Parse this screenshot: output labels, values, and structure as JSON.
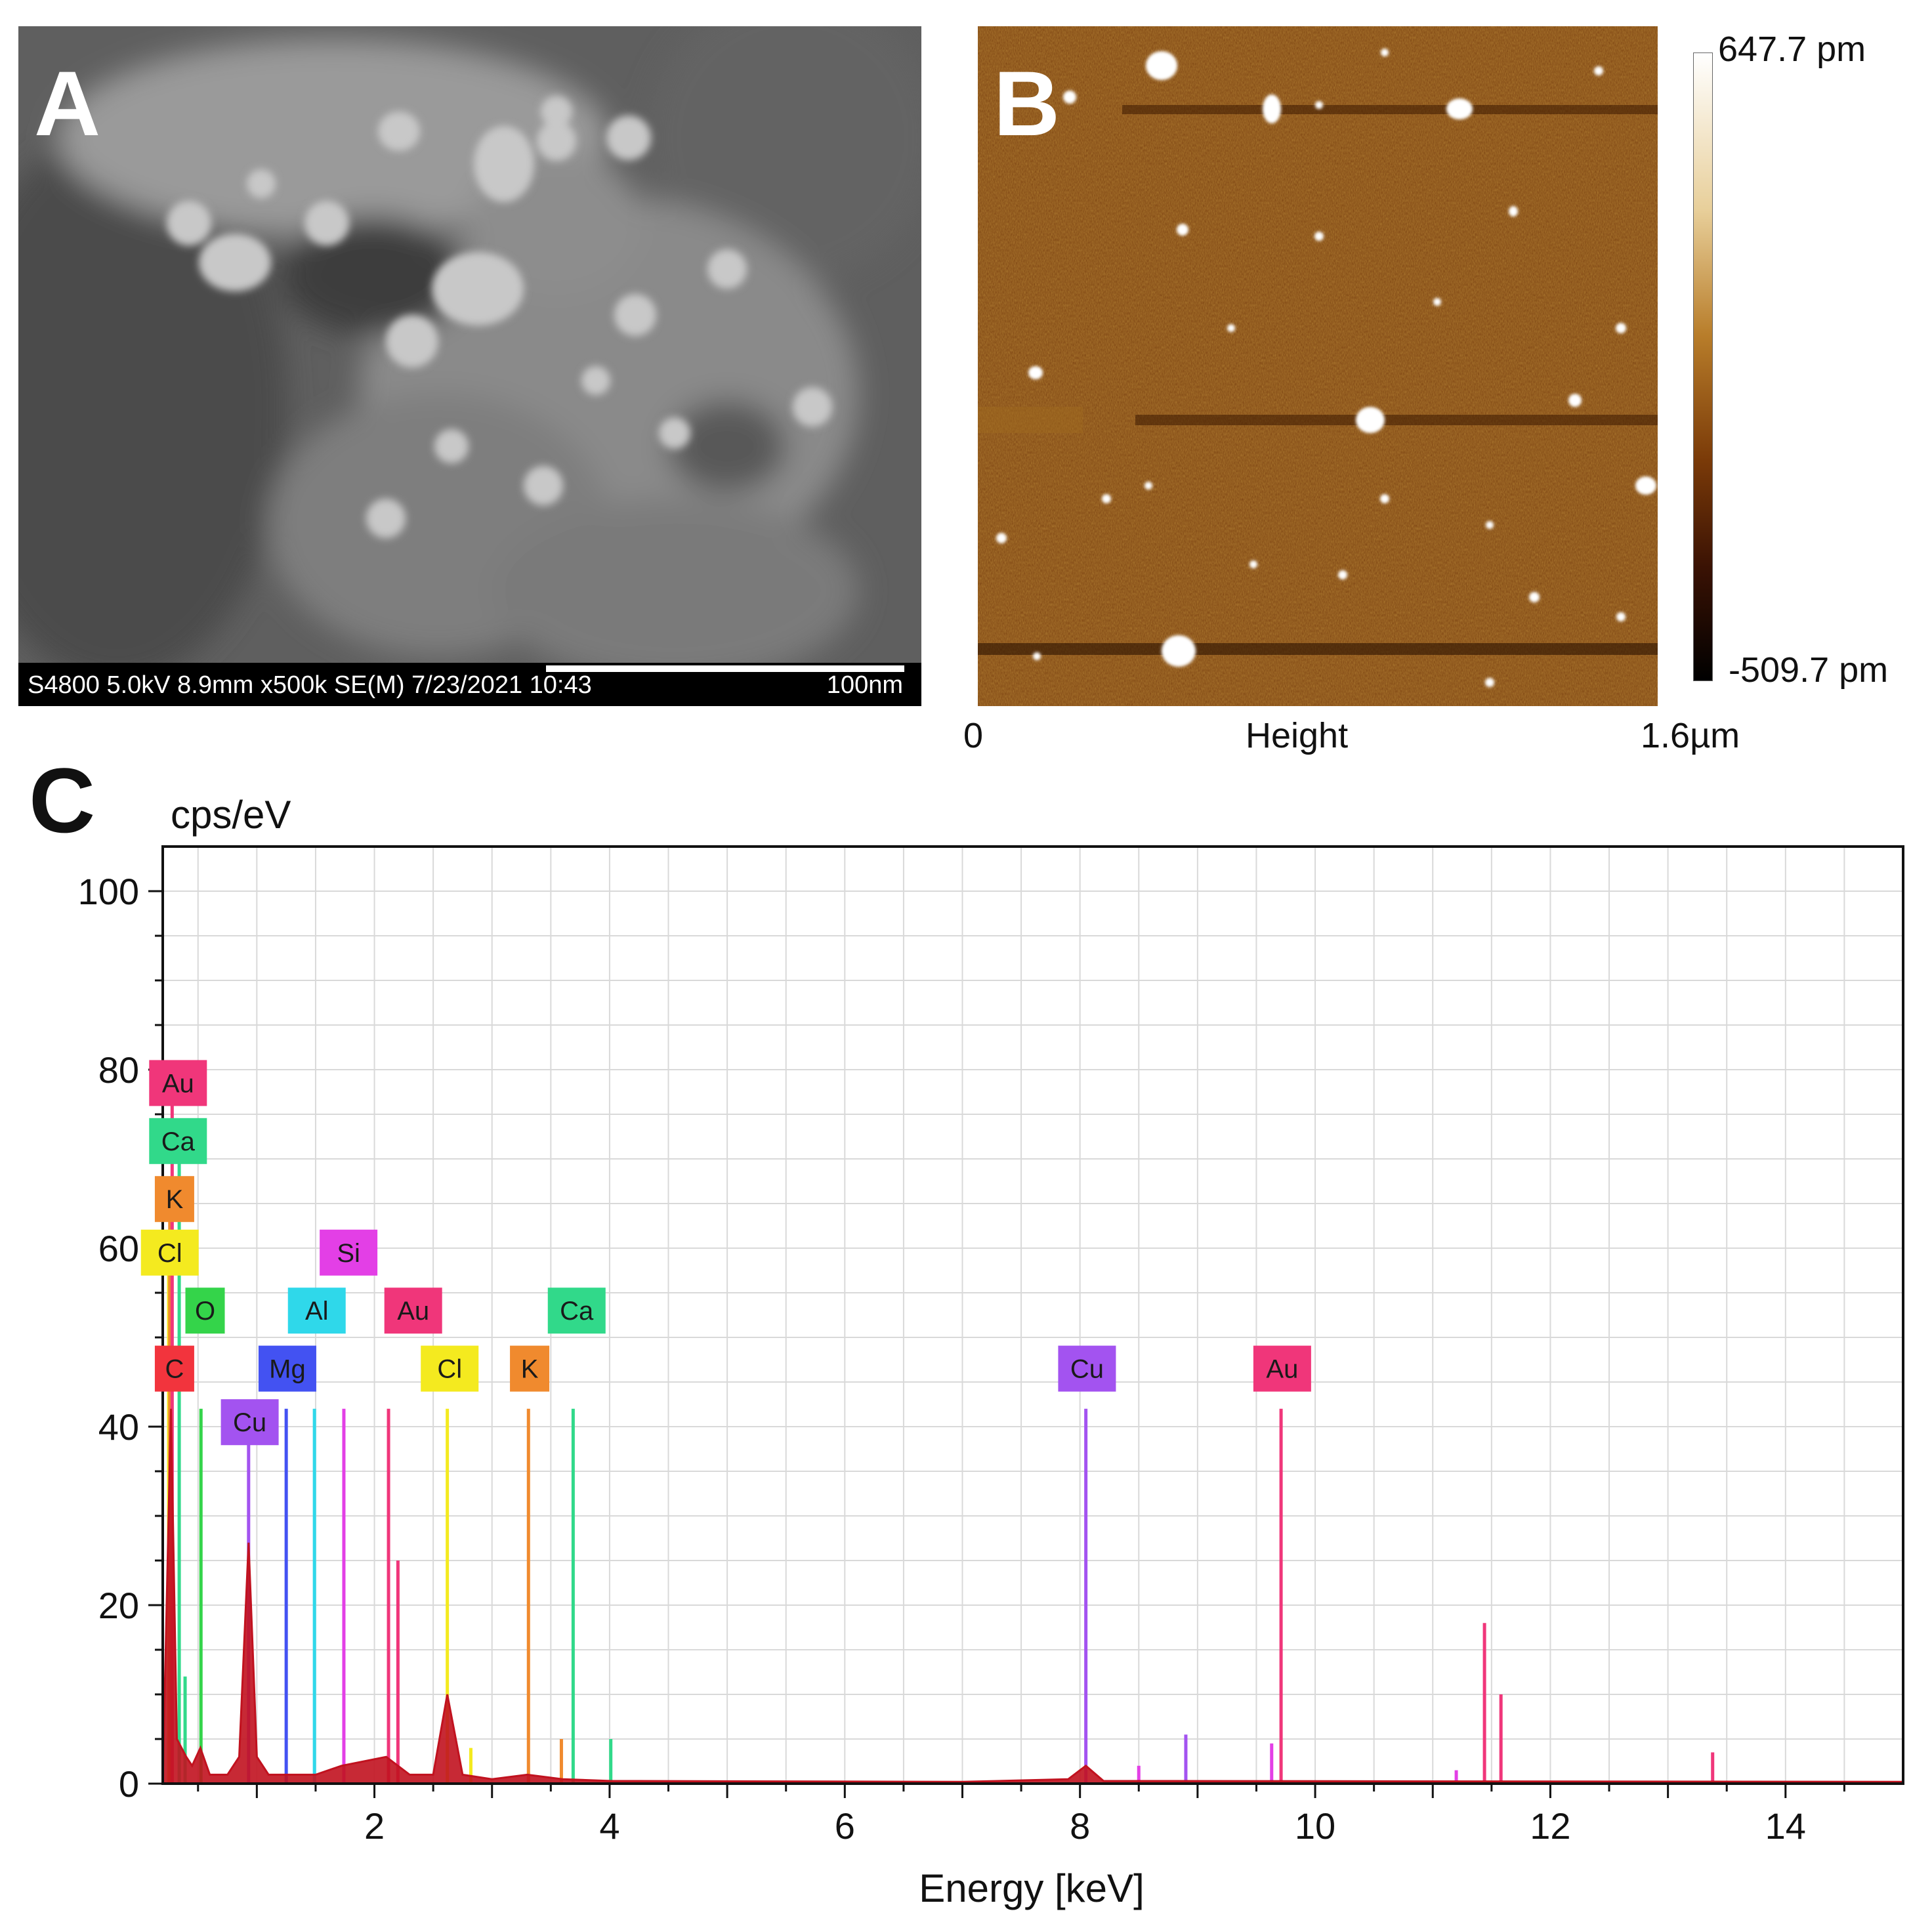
{
  "figure": {
    "panel_a": {
      "label": "A",
      "info_bar": "S4800 5.0kV 8.9mm x500k SE(M) 7/23/2021 10:43",
      "scale_text": "100nm"
    },
    "panel_b": {
      "label": "B",
      "colorbar_max": "647.7 pm",
      "colorbar_min": "-509.7 pm",
      "x_start": "0",
      "x_title": "Height",
      "x_end": "1.6µm",
      "colors": {
        "low": "#000000",
        "mid": "#7a3a08",
        "high": "#ffffff",
        "background": "#7a4010"
      }
    },
    "panel_c": {
      "label": "C"
    }
  },
  "chart_data": {
    "type": "line",
    "ylabel": "cps/eV",
    "xlabel": "Energy [keV]",
    "xlim": [
      0.2,
      15
    ],
    "ylim": [
      0,
      105
    ],
    "xticks": [
      2,
      4,
      6,
      8,
      10,
      12,
      14
    ],
    "yticks": [
      0,
      20,
      40,
      60,
      80,
      100
    ],
    "grid": true,
    "spectrum_color": "#c1121f",
    "spectrum": [
      {
        "x": 0.2,
        "y": 0
      },
      {
        "x": 0.27,
        "y": 42
      },
      {
        "x": 0.32,
        "y": 5
      },
      {
        "x": 0.4,
        "y": 3
      },
      {
        "x": 0.45,
        "y": 2
      },
      {
        "x": 0.52,
        "y": 4
      },
      {
        "x": 0.6,
        "y": 1
      },
      {
        "x": 0.75,
        "y": 1
      },
      {
        "x": 0.85,
        "y": 3
      },
      {
        "x": 0.93,
        "y": 27
      },
      {
        "x": 1.0,
        "y": 3
      },
      {
        "x": 1.1,
        "y": 1
      },
      {
        "x": 1.3,
        "y": 1
      },
      {
        "x": 1.5,
        "y": 1
      },
      {
        "x": 1.72,
        "y": 2
      },
      {
        "x": 2.1,
        "y": 3
      },
      {
        "x": 2.3,
        "y": 1
      },
      {
        "x": 2.5,
        "y": 1
      },
      {
        "x": 2.62,
        "y": 10
      },
      {
        "x": 2.75,
        "y": 1
      },
      {
        "x": 3.0,
        "y": 0.5
      },
      {
        "x": 3.3,
        "y": 1
      },
      {
        "x": 3.6,
        "y": 0.5
      },
      {
        "x": 4.0,
        "y": 0.3
      },
      {
        "x": 7.0,
        "y": 0.2
      },
      {
        "x": 7.9,
        "y": 0.5
      },
      {
        "x": 8.05,
        "y": 2
      },
      {
        "x": 8.2,
        "y": 0.3
      },
      {
        "x": 15.0,
        "y": 0.2
      }
    ],
    "series": [
      {
        "name": "C",
        "color": "#f2343d",
        "peaks": [
          {
            "x": 0.277,
            "y": 42
          }
        ]
      },
      {
        "name": "O",
        "color": "#34d44a",
        "peaks": [
          {
            "x": 0.525,
            "y": 42
          }
        ]
      },
      {
        "name": "Cl",
        "color": "#f4ea1f",
        "peaks": [
          {
            "x": 0.25,
            "y": 60
          },
          {
            "x": 2.62,
            "y": 42
          },
          {
            "x": 2.82,
            "y": 4
          }
        ]
      },
      {
        "name": "K",
        "color": "#f08a2e",
        "peaks": [
          {
            "x": 0.26,
            "y": 66
          },
          {
            "x": 3.31,
            "y": 42
          },
          {
            "x": 3.59,
            "y": 5
          }
        ]
      },
      {
        "name": "Ca",
        "color": "#31d98a",
        "peaks": [
          {
            "x": 0.34,
            "y": 72
          },
          {
            "x": 0.39,
            "y": 12
          },
          {
            "x": 3.69,
            "y": 42
          },
          {
            "x": 4.01,
            "y": 5
          }
        ]
      },
      {
        "name": "Au",
        "color": "#f0367a",
        "peaks": [
          {
            "x": 0.28,
            "y": 79
          },
          {
            "x": 2.12,
            "y": 42
          },
          {
            "x": 2.2,
            "y": 25
          },
          {
            "x": 9.71,
            "y": 42
          },
          {
            "x": 11.44,
            "y": 18
          },
          {
            "x": 11.58,
            "y": 10
          },
          {
            "x": 13.38,
            "y": 3.5
          }
        ]
      },
      {
        "name": "Cu",
        "color": "#a353f0",
        "peaks": [
          {
            "x": 0.93,
            "y": 40
          },
          {
            "x": 8.05,
            "y": 42
          },
          {
            "x": 8.9,
            "y": 5.5
          }
        ]
      },
      {
        "name": "Mg",
        "color": "#4352f2",
        "peaks": [
          {
            "x": 1.25,
            "y": 42
          }
        ]
      },
      {
        "name": "Al",
        "color": "#2fd8ea",
        "peaks": [
          {
            "x": 1.49,
            "y": 42
          }
        ]
      },
      {
        "name": "Si",
        "color": "#e33fe6",
        "peaks": [
          {
            "x": 1.74,
            "y": 42
          },
          {
            "x": 8.5,
            "y": 2
          },
          {
            "x": 9.63,
            "y": 4.5
          },
          {
            "x": 11.2,
            "y": 1.5
          }
        ]
      }
    ],
    "labels": [
      {
        "text": "Au",
        "x": 0.33,
        "y": 78.5,
        "color": "#f0367a"
      },
      {
        "text": "Ca",
        "x": 0.33,
        "y": 72,
        "color": "#31d98a"
      },
      {
        "text": "K",
        "x": 0.3,
        "y": 65.5,
        "color": "#f08a2e"
      },
      {
        "text": "Cl",
        "x": 0.26,
        "y": 59.5,
        "color": "#f4ea1f"
      },
      {
        "text": "O",
        "x": 0.56,
        "y": 53,
        "color": "#34d44a"
      },
      {
        "text": "C",
        "x": 0.3,
        "y": 46.5,
        "color": "#f2343d"
      },
      {
        "text": "Si",
        "x": 1.78,
        "y": 59.5,
        "color": "#e33fe6"
      },
      {
        "text": "Al",
        "x": 1.51,
        "y": 53,
        "color": "#2fd8ea"
      },
      {
        "text": "Au",
        "x": 2.33,
        "y": 53,
        "color": "#f0367a"
      },
      {
        "text": "Ca",
        "x": 3.72,
        "y": 53,
        "color": "#31d98a"
      },
      {
        "text": "Mg",
        "x": 1.26,
        "y": 46.5,
        "color": "#4352f2"
      },
      {
        "text": "Cl",
        "x": 2.64,
        "y": 46.5,
        "color": "#f4ea1f"
      },
      {
        "text": "K",
        "x": 3.32,
        "y": 46.5,
        "color": "#f08a2e"
      },
      {
        "text": "Cu",
        "x": 0.94,
        "y": 40.5,
        "color": "#a353f0"
      },
      {
        "text": "Cu",
        "x": 8.06,
        "y": 46.5,
        "color": "#a353f0"
      },
      {
        "text": "Au",
        "x": 9.72,
        "y": 46.5,
        "color": "#f0367a"
      }
    ]
  }
}
